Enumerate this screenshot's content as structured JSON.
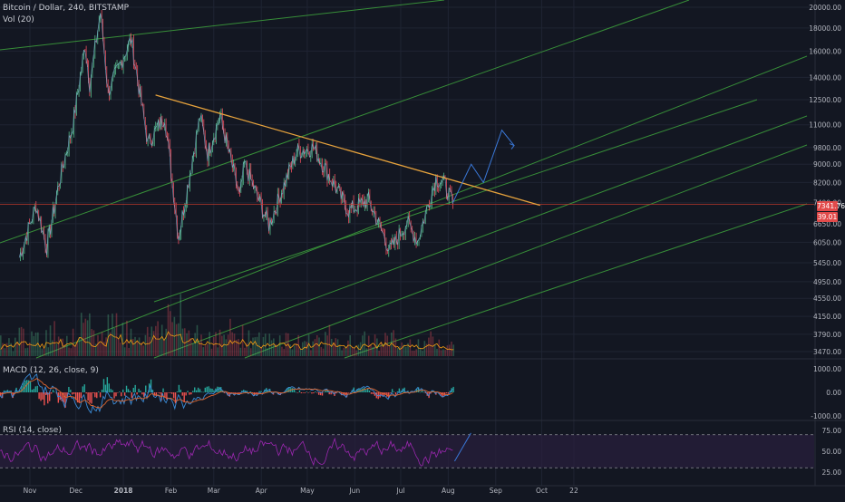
{
  "header": {
    "symbol_line": "Bitcoin / Dollar, 240, BITSTAMP",
    "volume_label": "Vol (20)",
    "macd_label": "MACD (12, 26, close, 9)",
    "rsi_label": "RSI (14, close)"
  },
  "price_tags": {
    "last_price": "7341.76",
    "volume_value": "39.01"
  },
  "colors": {
    "background": "#131722",
    "grid": "#1f2433",
    "price_line": "#7fb3d5",
    "candle_up": "#53b987",
    "candle_down": "#eb4d5c",
    "trendline_orange": "#e6a23c",
    "channel_green": "#3b9b3b",
    "forecast_blue": "#3a78d8",
    "level_red": "#c0392b",
    "volume_line": "#f39c12",
    "macd_line": "#3a8bd6",
    "signal_line": "#e0672f",
    "macd_hist_pos": "#26a69a",
    "macd_hist_neg": "#ef5350",
    "rsi_line": "#9c27b0",
    "rsi_band": "#2a1f3d"
  },
  "chart_data": [
    {
      "type": "line",
      "title": "Bitcoin / Dollar, 240, BITSTAMP",
      "x_axis_ticks": [
        "Nov",
        "Dec",
        "2018",
        "Feb",
        "Mar",
        "Apr",
        "May",
        "Jun",
        "Jul",
        "Aug",
        "Sep",
        "Oct",
        "22"
      ],
      "y_axis_ticks": [
        20000,
        18000,
        16000,
        14000,
        12500,
        11000,
        9800,
        9000,
        8200,
        7400,
        6650,
        6050,
        5450,
        4950,
        4550,
        4150,
        3790,
        3470
      ],
      "y_scale": "log",
      "ylim": [
        3470,
        20000
      ],
      "series": [
        {
          "values_approx": [
            {
              "x": "2017-10-25",
              "y": 5600
            },
            {
              "x": "2017-11-05",
              "y": 7300
            },
            {
              "x": "2017-11-12",
              "y": 5900
            },
            {
              "x": "2017-11-20",
              "y": 8200
            },
            {
              "x": "2017-11-29",
              "y": 11000
            },
            {
              "x": "2017-12-07",
              "y": 16500
            },
            {
              "x": "2017-12-10",
              "y": 13500
            },
            {
              "x": "2017-12-17",
              "y": 19500
            },
            {
              "x": "2017-12-22",
              "y": 13000
            },
            {
              "x": "2018-01-06",
              "y": 17000
            },
            {
              "x": "2018-01-17",
              "y": 10000
            },
            {
              "x": "2018-01-28",
              "y": 11500
            },
            {
              "x": "2018-02-06",
              "y": 6200
            },
            {
              "x": "2018-02-20",
              "y": 11500
            },
            {
              "x": "2018-02-25",
              "y": 9500
            },
            {
              "x": "2018-03-05",
              "y": 11500
            },
            {
              "x": "2018-03-18",
              "y": 7600
            },
            {
              "x": "2018-03-21",
              "y": 9000
            },
            {
              "x": "2018-04-06",
              "y": 6600
            },
            {
              "x": "2018-04-24",
              "y": 9600
            },
            {
              "x": "2018-05-05",
              "y": 9800
            },
            {
              "x": "2018-05-28",
              "y": 7100
            },
            {
              "x": "2018-06-10",
              "y": 7500
            },
            {
              "x": "2018-06-24",
              "y": 5800
            },
            {
              "x": "2018-07-05",
              "y": 6700
            },
            {
              "x": "2018-07-12",
              "y": 6100
            },
            {
              "x": "2018-07-24",
              "y": 8400
            },
            {
              "x": "2018-07-30",
              "y": 8100
            },
            {
              "x": "2018-08-04",
              "y": 7341.76
            }
          ]
        }
      ],
      "annotations": {
        "horizontal_level": 7341.76,
        "descending_trendline": [
          {
            "x": "2018-01-22",
            "y": 12800
          },
          {
            "x": "2018-09-30",
            "y": 7300
          }
        ],
        "forecast_path": [
          {
            "x": "2018-08-04",
            "y": 7400
          },
          {
            "x": "2018-08-16",
            "y": 9000
          },
          {
            "x": "2018-08-24",
            "y": 8200
          },
          {
            "x": "2018-09-05",
            "y": 10700
          },
          {
            "x": "2018-09-13",
            "y": 9900
          }
        ]
      },
      "grid": true
    },
    {
      "type": "area",
      "title": "Vol (20)",
      "series": [
        {
          "values_approx": [
            0.35,
            0.55,
            0.4,
            0.6,
            0.45,
            0.7,
            0.5,
            0.9,
            0.6,
            0.55,
            0.8,
            1.0,
            0.65,
            0.5,
            0.45,
            0.6,
            0.5,
            0.4,
            0.45,
            0.35,
            0.4,
            0.5,
            0.3,
            0.35,
            0.4,
            0.45,
            0.3,
            0.35,
            0.4,
            0.3
          ]
        }
      ]
    },
    {
      "type": "line",
      "title": "MACD (12, 26, close, 9)",
      "y_axis_ticks": [
        1000,
        0,
        -1000
      ],
      "ylim": [
        -1100,
        1100
      ]
    },
    {
      "type": "line",
      "title": "RSI (14, close)",
      "y_axis_ticks": [
        75,
        50,
        25
      ],
      "ylim": [
        15,
        85
      ],
      "bands": [
        30,
        70
      ]
    }
  ]
}
